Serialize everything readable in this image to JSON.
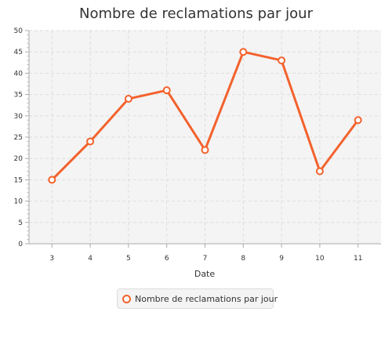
{
  "chart_data": {
    "type": "line",
    "title": "Nombre de reclamations par jour",
    "xlabel": "Date",
    "ylabel": "",
    "x": [
      3,
      4,
      5,
      6,
      7,
      8,
      9,
      10,
      11
    ],
    "series": [
      {
        "name": "Nombre de reclamations par jour",
        "values": [
          15,
          24,
          34,
          36,
          22,
          45,
          43,
          17,
          29
        ]
      }
    ],
    "xlim": [
      2.4,
      11.6
    ],
    "ylim": [
      0,
      50
    ],
    "yticks": [
      0,
      5,
      10,
      15,
      20,
      25,
      30,
      35,
      40,
      45,
      50
    ],
    "xticks": [
      3,
      4,
      5,
      6,
      7,
      8,
      9,
      10,
      11
    ],
    "grid": true,
    "legend": "bottom",
    "colors": {
      "series": "#f3622d",
      "plot_background": "#f4f4f4",
      "grid": "#dddddd"
    }
  }
}
